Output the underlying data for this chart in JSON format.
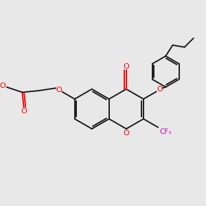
{
  "bg_color": "#e8e8e8",
  "bond_color": "#1a1a1a",
  "oxygen_color": "#ff0000",
  "fluorine_color": "#cc00cc",
  "lw": 1.4,
  "fig_width": 3.0,
  "fig_height": 3.0,
  "dpi": 100,
  "xlim": [
    0,
    10
  ],
  "ylim": [
    0,
    10
  ]
}
